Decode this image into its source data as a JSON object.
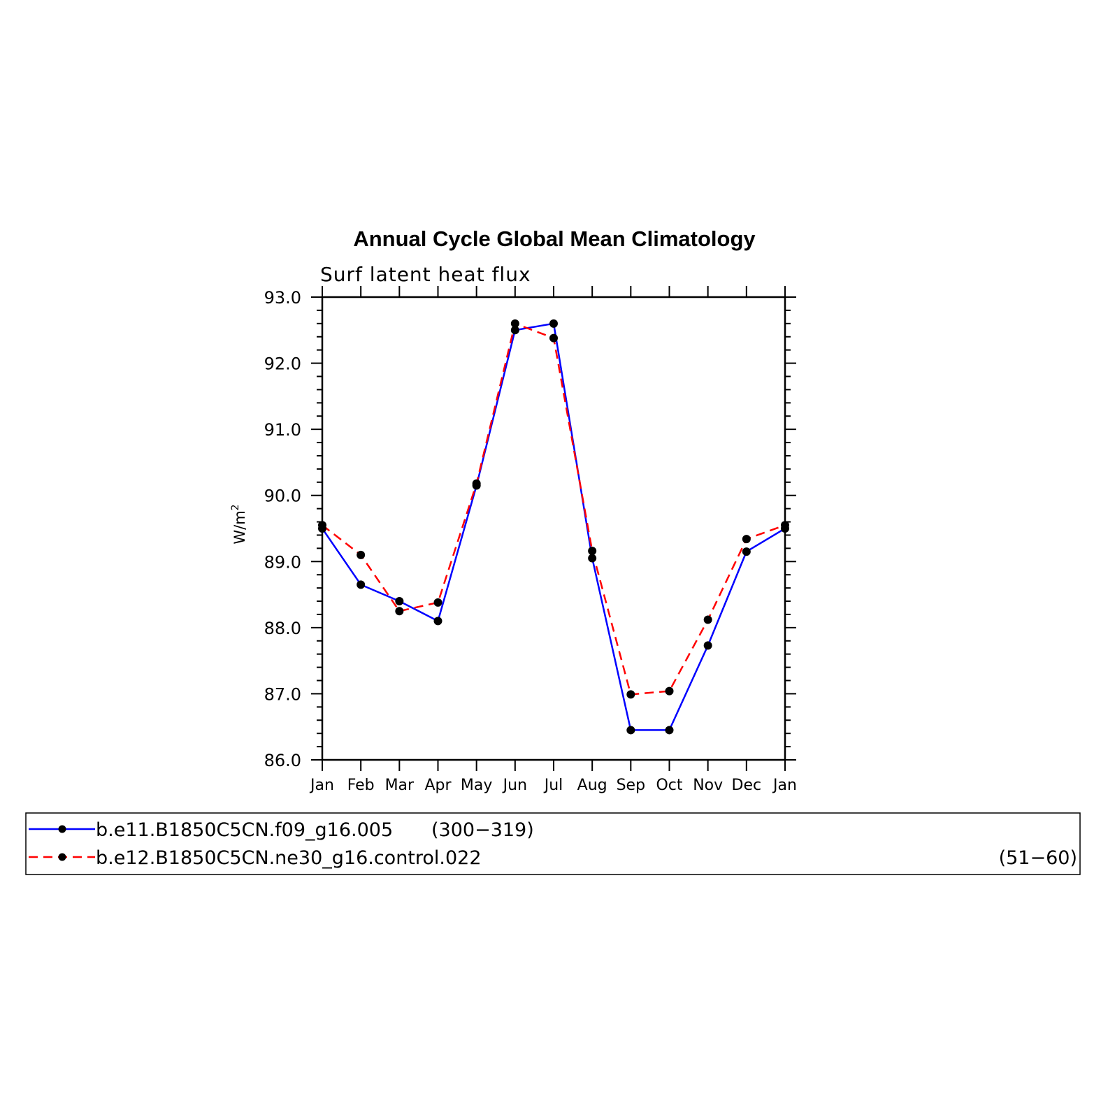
{
  "chart_data": {
    "type": "line",
    "title": "Annual Cycle Global Mean Climatology",
    "subtitle": "Surf latent heat flux",
    "ylabel": "W/m",
    "ylabel_superscript": "2",
    "ylim": [
      86.0,
      93.0
    ],
    "yticks": [
      "86.0",
      "87.0",
      "88.0",
      "89.0",
      "90.0",
      "91.0",
      "92.0",
      "93.0"
    ],
    "categories": [
      "Jan",
      "Feb",
      "Mar",
      "Apr",
      "May",
      "Jun",
      "Jul",
      "Aug",
      "Sep",
      "Oct",
      "Nov",
      "Dec",
      "Jan"
    ],
    "grid": false,
    "legend_position": "bottom",
    "series": [
      {
        "name": "b.e11.B1850C5CN.f09_g16.005",
        "years": "(300−319)",
        "color": "#0000ff",
        "dash": "solid",
        "values": [
          89.5,
          88.65,
          88.4,
          88.1,
          90.15,
          92.5,
          92.6,
          89.05,
          86.45,
          86.45,
          87.73,
          89.15,
          89.5
        ]
      },
      {
        "name": "b.e12.B1850C5CN.ne30_g16.control.022",
        "years": "(51−60)",
        "color": "#ff0000",
        "dash": "dashed",
        "values": [
          89.55,
          89.1,
          88.25,
          88.38,
          90.18,
          92.6,
          92.38,
          89.16,
          86.99,
          87.04,
          88.12,
          89.34,
          89.55
        ]
      }
    ]
  }
}
